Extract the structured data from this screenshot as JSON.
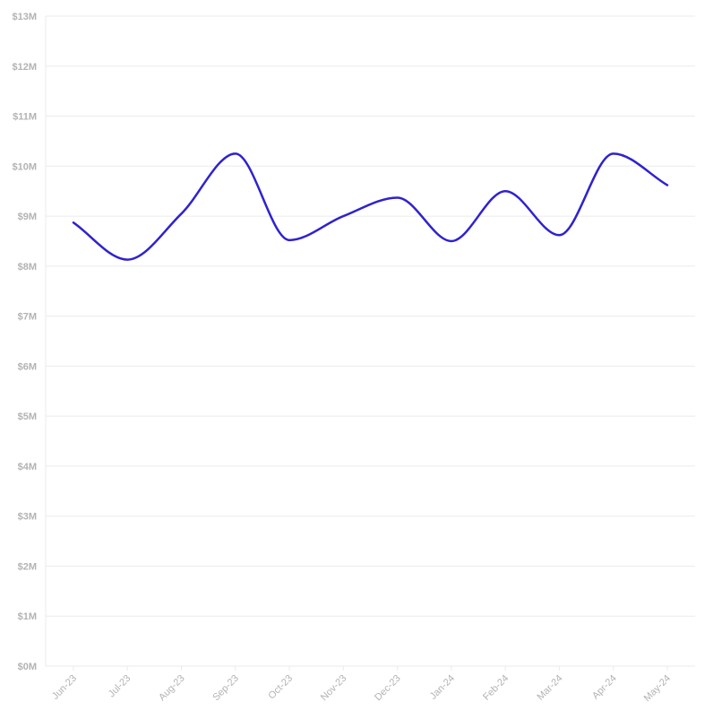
{
  "chart_data": {
    "type": "line",
    "title": "",
    "xlabel": "",
    "ylabel": "",
    "categories": [
      "Jun-23",
      "Jul-23",
      "Aug-23",
      "Sep-23",
      "Oct-23",
      "Nov-23",
      "Dec-23",
      "Jan-24",
      "Feb-24",
      "Mar-24",
      "Apr-24",
      "May-24"
    ],
    "series": [
      {
        "values": [
          8.87,
          8.13,
          9.05,
          10.25,
          8.52,
          9.0,
          9.37,
          8.5,
          9.5,
          8.62,
          10.25,
          9.62
        ],
        "color": "#2f22cf"
      }
    ],
    "ylim": [
      0,
      13
    ],
    "y_ticks": [
      0,
      1,
      2,
      3,
      4,
      5,
      6,
      7,
      8,
      9,
      10,
      11,
      12,
      13
    ],
    "y_tick_labels": [
      "$0M",
      "$1M",
      "$2M",
      "$3M",
      "$4M",
      "$5M",
      "$6M",
      "$7M",
      "$8M",
      "$9M",
      "$10M",
      "$11M",
      "$12M",
      "$13M"
    ],
    "grid": true,
    "legend": "none",
    "colors": {
      "line": "#2f22cf",
      "grid": "#ebebeb",
      "tick_text": "#b3b3b3"
    }
  }
}
